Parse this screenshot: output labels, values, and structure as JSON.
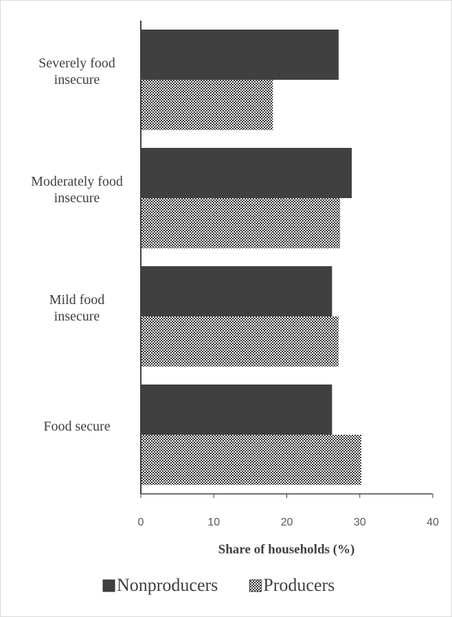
{
  "chart_data": {
    "type": "barh",
    "categories": [
      "Severely food insecure",
      "Moderately food insecure",
      "Mild food insecure",
      "Food secure"
    ],
    "series": [
      {
        "name": "Nonproducers",
        "color": "#404040",
        "values": [
          27.1,
          28.9,
          26.2,
          26.2
        ]
      },
      {
        "name": "Producers",
        "color": "pattern",
        "values": [
          18.1,
          27.3,
          27.1,
          30.2
        ]
      }
    ],
    "xlabel": "Share of households (%)",
    "xlim": [
      0,
      40
    ],
    "xticks": [
      0,
      10,
      20,
      30,
      40
    ]
  }
}
